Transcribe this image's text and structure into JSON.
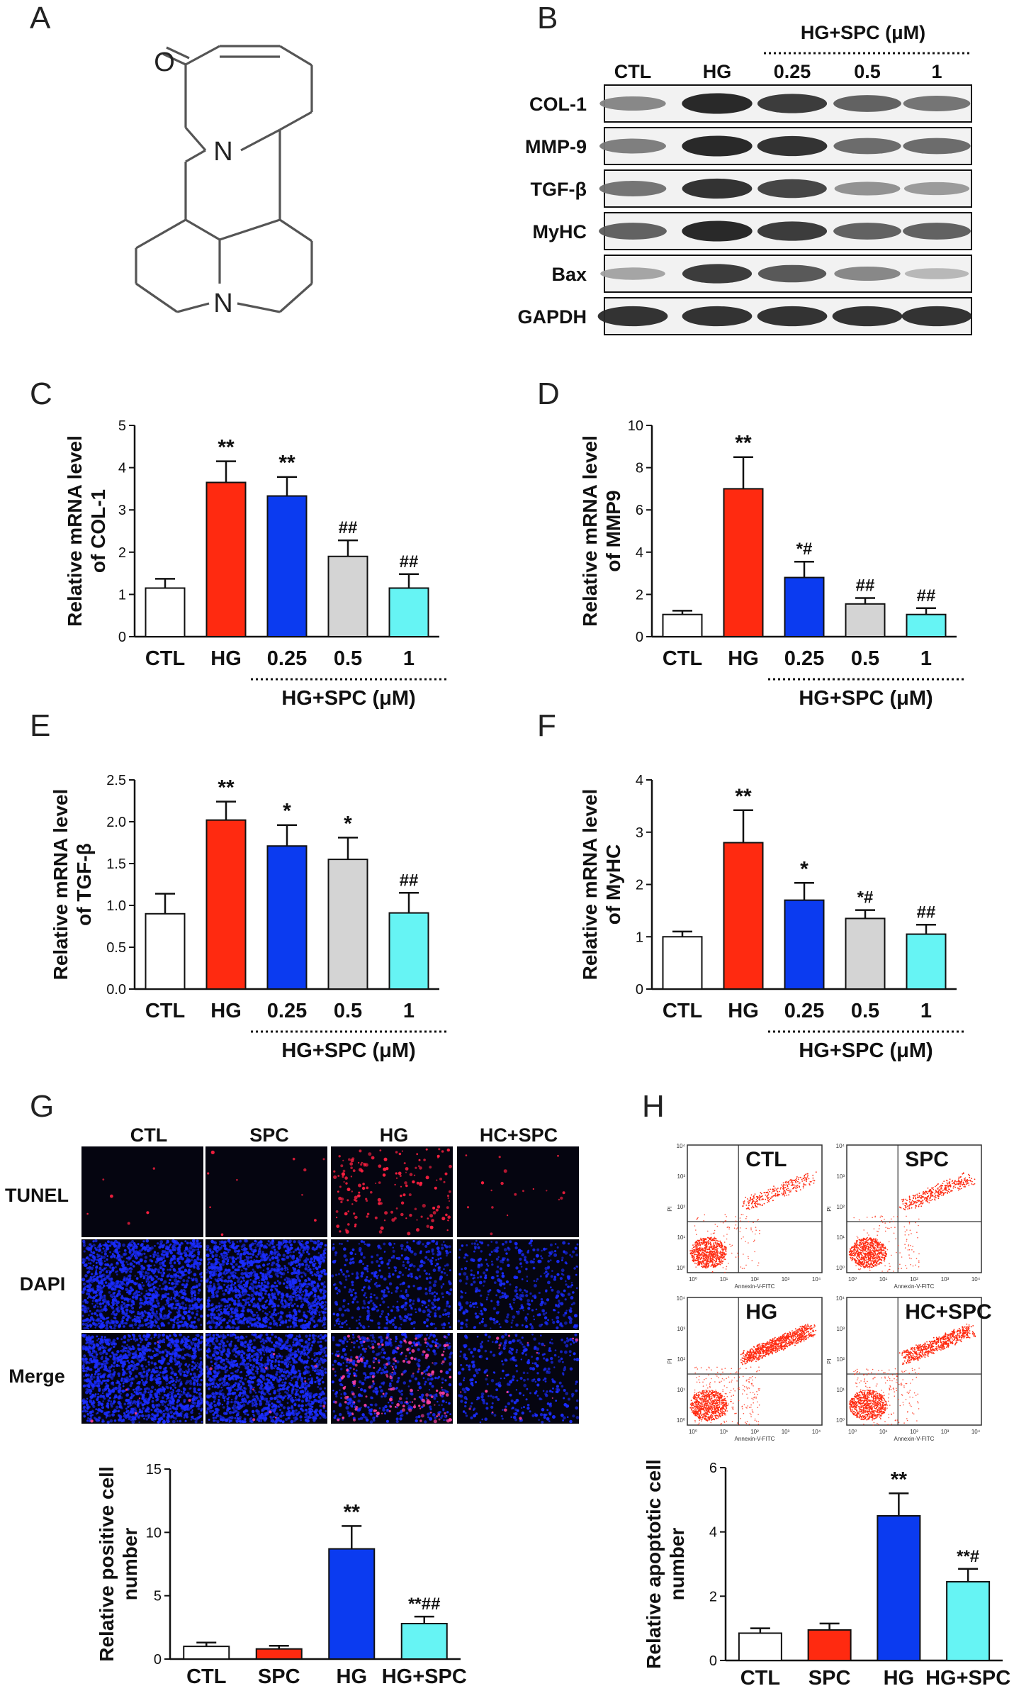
{
  "panels": {
    "A": "A",
    "B": "B",
    "C": "C",
    "D": "D",
    "E": "E",
    "F": "F",
    "G": "G",
    "H": "H"
  },
  "molecule": {
    "atom_o": "O",
    "atom_n_top": "N",
    "atom_n_bottom": "N"
  },
  "western_blot": {
    "treatment_header": "HG+SPC (μM)",
    "lane_labels": [
      "CTL",
      "HG",
      "0.25",
      "0.5",
      "1"
    ],
    "rows": [
      {
        "label": "COL-1",
        "intensity": [
          0.45,
          0.95,
          0.85,
          0.65,
          0.55
        ]
      },
      {
        "label": "MMP-9",
        "intensity": [
          0.5,
          0.95,
          0.9,
          0.6,
          0.6
        ]
      },
      {
        "label": "TGF-β",
        "intensity": [
          0.55,
          0.9,
          0.8,
          0.4,
          0.35
        ]
      },
      {
        "label": "MyHC",
        "intensity": [
          0.65,
          0.95,
          0.85,
          0.65,
          0.65
        ]
      },
      {
        "label": "Bax",
        "intensity": [
          0.3,
          0.85,
          0.7,
          0.45,
          0.2
        ]
      },
      {
        "label": "GAPDH",
        "intensity": [
          0.9,
          0.9,
          0.9,
          0.9,
          0.9
        ]
      }
    ]
  },
  "chart_data": [
    {
      "id": "C",
      "type": "bar",
      "categories": [
        "CTL",
        "HG",
        "0.25",
        "0.5",
        "1"
      ],
      "values": [
        1.15,
        3.65,
        3.33,
        1.9,
        1.15
      ],
      "errors": [
        0.22,
        0.5,
        0.45,
        0.38,
        0.33
      ],
      "annotations": [
        "",
        "**",
        "**",
        "##",
        "##"
      ],
      "ylabel_lines": [
        "Relative mRNA level",
        "of COL-1"
      ],
      "ylim": [
        0,
        5
      ],
      "yticks": [
        "0",
        "1",
        "2",
        "3",
        "4",
        "5"
      ],
      "group_label": "HG+SPC (μM)",
      "colors": [
        "#ffffff",
        "#ff2a10",
        "#0b3bf0",
        "#d4d4d4",
        "#66f4f4"
      ]
    },
    {
      "id": "D",
      "type": "bar",
      "categories": [
        "CTL",
        "HG",
        "0.25",
        "0.5",
        "1"
      ],
      "values": [
        1.05,
        7.0,
        2.8,
        1.55,
        1.05
      ],
      "errors": [
        0.18,
        1.5,
        0.75,
        0.28,
        0.3
      ],
      "annotations": [
        "",
        "**",
        "*#",
        "##",
        "##"
      ],
      "ylabel_lines": [
        "Relative mRNA level",
        "of MMP9"
      ],
      "ylim": [
        0,
        10
      ],
      "yticks": [
        "0",
        "2",
        "4",
        "6",
        "8",
        "10"
      ],
      "group_label": "HG+SPC (μM)",
      "colors": [
        "#ffffff",
        "#ff2a10",
        "#0b3bf0",
        "#d4d4d4",
        "#66f4f4"
      ]
    },
    {
      "id": "E",
      "type": "bar",
      "categories": [
        "CTL",
        "HG",
        "0.25",
        "0.5",
        "1"
      ],
      "values": [
        0.9,
        2.02,
        1.71,
        1.55,
        0.91
      ],
      "errors": [
        0.24,
        0.22,
        0.25,
        0.26,
        0.24
      ],
      "annotations": [
        "",
        "**",
        "*",
        "*",
        "##"
      ],
      "ylabel_lines": [
        "Relative mRNA level",
        "of TGF-β"
      ],
      "ylim": [
        0,
        2.5
      ],
      "yticks": [
        "0.0",
        "0.5",
        "1.0",
        "1.5",
        "2.0",
        "2.5"
      ],
      "group_label": "HG+SPC (μM)",
      "colors": [
        "#ffffff",
        "#ff2a10",
        "#0b3bf0",
        "#d4d4d4",
        "#66f4f4"
      ]
    },
    {
      "id": "F",
      "type": "bar",
      "categories": [
        "CTL",
        "HG",
        "0.25",
        "0.5",
        "1"
      ],
      "values": [
        1.0,
        2.8,
        1.7,
        1.35,
        1.05
      ],
      "errors": [
        0.1,
        0.62,
        0.33,
        0.16,
        0.18
      ],
      "annotations": [
        "",
        "**",
        "*",
        "*#",
        "##"
      ],
      "ylabel_lines": [
        "Relative mRNA level",
        "of MyHC"
      ],
      "ylim": [
        0,
        4
      ],
      "yticks": [
        "0",
        "1",
        "2",
        "3",
        "4"
      ],
      "group_label": "HG+SPC (μM)",
      "colors": [
        "#ffffff",
        "#ff2a10",
        "#0b3bf0",
        "#d4d4d4",
        "#66f4f4"
      ]
    },
    {
      "id": "G",
      "type": "bar",
      "categories": [
        "CTL",
        "SPC",
        "HG",
        "HG+SPC"
      ],
      "values": [
        1.0,
        0.8,
        8.7,
        2.8
      ],
      "errors": [
        0.3,
        0.25,
        1.8,
        0.55
      ],
      "annotations": [
        "",
        "",
        "**",
        "**##"
      ],
      "ylabel_lines": [
        "Relative positive cell",
        "number"
      ],
      "ylim": [
        0,
        15
      ],
      "yticks": [
        "0",
        "5",
        "10",
        "15"
      ],
      "group_label": "",
      "colors": [
        "#ffffff",
        "#ff2a10",
        "#0b3bf0",
        "#66f4f4"
      ]
    },
    {
      "id": "H",
      "type": "bar",
      "categories": [
        "CTL",
        "SPC",
        "HG",
        "HG+SPC"
      ],
      "values": [
        0.85,
        0.95,
        4.5,
        2.45
      ],
      "errors": [
        0.15,
        0.2,
        0.7,
        0.4
      ],
      "annotations": [
        "",
        "",
        "**",
        "**#"
      ],
      "ylabel_lines": [
        "Relative apoptotic cell",
        "number"
      ],
      "ylim": [
        0,
        6
      ],
      "yticks": [
        "0",
        "2",
        "4",
        "6"
      ],
      "group_label": "",
      "colors": [
        "#ffffff",
        "#ff2a10",
        "#0b3bf0",
        "#66f4f4"
      ]
    }
  ],
  "tunel": {
    "columns": [
      "CTL",
      "SPC",
      "HG",
      "HC+SPC"
    ],
    "rows": [
      "TUNEL",
      "DAPI",
      "Merge"
    ]
  },
  "flow": {
    "plots": [
      {
        "title": "CTL",
        "density": 0.25
      },
      {
        "title": "SPC",
        "density": 0.35
      },
      {
        "title": "HG",
        "density": 1.0
      },
      {
        "title": "HC+SPC",
        "density": 0.7
      }
    ],
    "xlabel": "Annexin-V-FITC",
    "ylabel": "PI",
    "ticks": [
      "10⁰",
      "10¹",
      "10²",
      "10³",
      "10⁴"
    ]
  },
  "colors": {
    "white": "#ffffff",
    "red": "#ff2a10",
    "blue": "#0b3bf0",
    "gray": "#d4d4d4",
    "cyan": "#66f4f4",
    "dapi": "#1a2cff",
    "tunel": "#ff2040"
  }
}
